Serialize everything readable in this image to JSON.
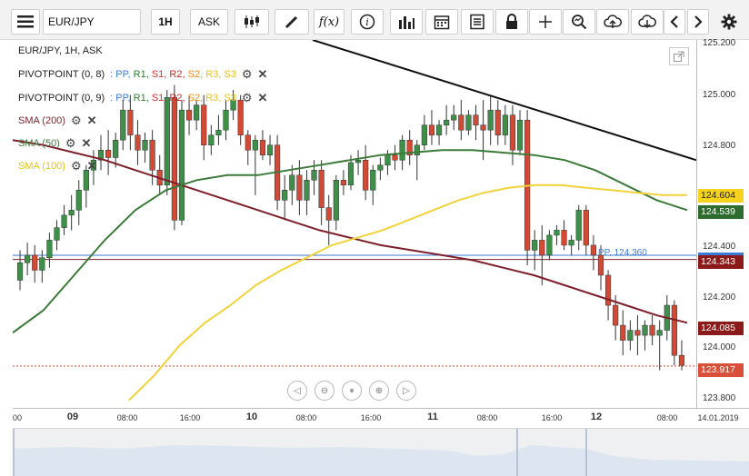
{
  "toolbar": {
    "menu_icon": "hamburger-menu-icon",
    "symbol": "EUR/JPY",
    "timeframe": "1H",
    "price_type": "ASK",
    "fx_label": "f(x)",
    "icons": [
      "candlestick-icon",
      "draw-pencil-icon",
      "indicator-fx-icon",
      "info-icon",
      "volume-bars-icon",
      "calendar-icon",
      "news-icon",
      "lock-icon",
      "crosshair-icon",
      "zoom-icon",
      "cloud-upload-icon",
      "cloud-download-icon",
      "arrow-left-icon",
      "arrow-right-icon",
      "settings-gear-icon"
    ]
  },
  "legend": {
    "title": "EUR/JPY, 1H, ASK",
    "pivot1": "PIVOTPOINT (0, 8)",
    "pivot2": "PIVOTPOINT (0, 9)",
    "pivot_parts": [
      ": PP,",
      "R1,",
      "S1,",
      "R2,",
      "S2,",
      "R3,",
      "S3"
    ],
    "sma200": "SMA (200)",
    "sma50": "SMA (50)",
    "sma100": "SMA (100)",
    "pivot_label": "PP, 124.360"
  },
  "yaxis": {
    "ticks": [
      "125.200",
      "125.000",
      "124.800",
      "124.400",
      "124.200",
      "124.000",
      "123.800"
    ],
    "tags": [
      {
        "text": "124.604",
        "bg": "#f5d21c",
        "fg": "#222222"
      },
      {
        "text": "124.539",
        "bg": "#2e6b2e",
        "fg": "#ffffff"
      },
      {
        "text": "124.343",
        "bg": "#8b1a1a",
        "fg": "#ffffff"
      },
      {
        "text": "124.085",
        "bg": "#8b1a1a",
        "fg": "#ffffff"
      },
      {
        "text": "123.917",
        "bg": "#d9503a",
        "fg": "#ffffff"
      }
    ]
  },
  "xaxis": {
    "ticks": [
      "00",
      "09",
      "08:00",
      "16:00",
      "10",
      "08:00",
      "16:00",
      "11",
      "08:00",
      "16:00",
      "12",
      "08:00",
      "14.01.2019"
    ]
  },
  "colors": {
    "up": "#3f8f4a",
    "down": "#d24a35",
    "sma200": "#7d1f2a",
    "sma50": "#3c7a3a",
    "sma100": "#f0d33a",
    "trendline": "#111111",
    "pp_blue": "#3a7bd5",
    "r_green": "#2e7d32",
    "s_red": "#d32f2f",
    "r2_red": "#c62828",
    "s2_orange": "#f08c1a",
    "r3_yellow": "#e6c21a"
  },
  "chart_data": {
    "type": "candlestick",
    "title": "EUR/JPY, 1H, ASK",
    "ylim": [
      123.75,
      125.22
    ],
    "x_labels": [
      "09",
      "08:00",
      "16:00",
      "10",
      "08:00",
      "16:00",
      "11",
      "08:00",
      "16:00",
      "12",
      "08:00"
    ],
    "candles": [
      {
        "o": 124.26,
        "h": 124.38,
        "c": 124.33,
        "l": 124.22
      },
      {
        "o": 124.33,
        "h": 124.41,
        "c": 124.36,
        "l": 124.28
      },
      {
        "o": 124.36,
        "h": 124.4,
        "c": 124.3,
        "l": 124.25
      },
      {
        "o": 124.3,
        "h": 124.38,
        "c": 124.35,
        "l": 124.25
      },
      {
        "o": 124.35,
        "h": 124.45,
        "c": 124.42,
        "l": 124.31
      },
      {
        "o": 124.42,
        "h": 124.5,
        "c": 124.47,
        "l": 124.38
      },
      {
        "o": 124.47,
        "h": 124.56,
        "c": 124.52,
        "l": 124.44
      },
      {
        "o": 124.52,
        "h": 124.6,
        "c": 124.54,
        "l": 124.46
      },
      {
        "o": 124.54,
        "h": 124.66,
        "c": 124.62,
        "l": 124.48
      },
      {
        "o": 124.62,
        "h": 124.72,
        "c": 124.7,
        "l": 124.55
      },
      {
        "o": 124.7,
        "h": 124.78,
        "c": 124.74,
        "l": 124.64
      },
      {
        "o": 124.74,
        "h": 124.84,
        "c": 124.78,
        "l": 124.7
      },
      {
        "o": 124.78,
        "h": 124.86,
        "c": 124.75,
        "l": 124.68
      },
      {
        "o": 124.75,
        "h": 124.85,
        "c": 124.82,
        "l": 124.71
      },
      {
        "o": 124.82,
        "h": 124.98,
        "c": 124.94,
        "l": 124.78
      },
      {
        "o": 124.94,
        "h": 125.0,
        "c": 124.84,
        "l": 124.78
      },
      {
        "o": 124.84,
        "h": 124.9,
        "c": 124.78,
        "l": 124.72
      },
      {
        "o": 124.78,
        "h": 124.85,
        "c": 124.82,
        "l": 124.73
      },
      {
        "o": 124.82,
        "h": 124.86,
        "c": 124.7,
        "l": 124.64
      },
      {
        "o": 124.7,
        "h": 124.76,
        "c": 124.64,
        "l": 124.6
      },
      {
        "o": 124.64,
        "h": 125.02,
        "c": 124.99,
        "l": 124.6
      },
      {
        "o": 124.99,
        "h": 125.04,
        "c": 124.5,
        "l": 124.46
      },
      {
        "o": 124.5,
        "h": 124.98,
        "c": 124.94,
        "l": 124.48
      },
      {
        "o": 124.94,
        "h": 125.0,
        "c": 124.9,
        "l": 124.84
      },
      {
        "o": 124.9,
        "h": 124.98,
        "c": 124.96,
        "l": 124.86
      },
      {
        "o": 124.96,
        "h": 125.0,
        "c": 124.8,
        "l": 124.74
      },
      {
        "o": 124.8,
        "h": 124.88,
        "c": 124.84,
        "l": 124.76
      },
      {
        "o": 124.84,
        "h": 124.92,
        "c": 124.86,
        "l": 124.8
      },
      {
        "o": 124.86,
        "h": 124.98,
        "c": 124.94,
        "l": 124.82
      },
      {
        "o": 124.94,
        "h": 125.02,
        "c": 124.98,
        "l": 124.9
      },
      {
        "o": 124.98,
        "h": 125.0,
        "c": 124.84,
        "l": 124.8
      },
      {
        "o": 124.84,
        "h": 124.86,
        "c": 124.78,
        "l": 124.72
      },
      {
        "o": 124.78,
        "h": 124.84,
        "c": 124.82,
        "l": 124.6
      },
      {
        "o": 124.82,
        "h": 124.86,
        "c": 124.76,
        "l": 124.74
      },
      {
        "o": 124.76,
        "h": 124.84,
        "c": 124.8,
        "l": 124.72
      },
      {
        "o": 124.8,
        "h": 124.84,
        "c": 124.58,
        "l": 124.54
      },
      {
        "o": 124.58,
        "h": 124.68,
        "c": 124.62,
        "l": 124.5
      },
      {
        "o": 124.62,
        "h": 124.72,
        "c": 124.68,
        "l": 124.56
      },
      {
        "o": 124.68,
        "h": 124.74,
        "c": 124.58,
        "l": 124.52
      },
      {
        "o": 124.58,
        "h": 124.7,
        "c": 124.66,
        "l": 124.52
      },
      {
        "o": 124.66,
        "h": 124.74,
        "c": 124.7,
        "l": 124.6
      },
      {
        "o": 124.7,
        "h": 124.74,
        "c": 124.55,
        "l": 124.48
      },
      {
        "o": 124.55,
        "h": 124.6,
        "c": 124.5,
        "l": 124.4
      },
      {
        "o": 124.5,
        "h": 124.68,
        "c": 124.66,
        "l": 124.46
      },
      {
        "o": 124.66,
        "h": 124.7,
        "c": 124.64,
        "l": 124.6
      },
      {
        "o": 124.64,
        "h": 124.76,
        "c": 124.73,
        "l": 124.62
      },
      {
        "o": 124.73,
        "h": 124.78,
        "c": 124.74,
        "l": 124.68
      },
      {
        "o": 124.74,
        "h": 124.8,
        "c": 124.62,
        "l": 124.58
      },
      {
        "o": 124.62,
        "h": 124.72,
        "c": 124.7,
        "l": 124.56
      },
      {
        "o": 124.7,
        "h": 124.75,
        "c": 124.72,
        "l": 124.66
      },
      {
        "o": 124.72,
        "h": 124.78,
        "c": 124.76,
        "l": 124.68
      },
      {
        "o": 124.76,
        "h": 124.8,
        "c": 124.74,
        "l": 124.7
      },
      {
        "o": 124.74,
        "h": 124.84,
        "c": 124.82,
        "l": 124.7
      },
      {
        "o": 124.82,
        "h": 124.86,
        "c": 124.76,
        "l": 124.72
      },
      {
        "o": 124.76,
        "h": 124.82,
        "c": 124.8,
        "l": 124.66
      },
      {
        "o": 124.8,
        "h": 124.92,
        "c": 124.88,
        "l": 124.78
      },
      {
        "o": 124.88,
        "h": 124.94,
        "c": 124.84,
        "l": 124.8
      },
      {
        "o": 124.84,
        "h": 124.9,
        "c": 124.88,
        "l": 124.8
      },
      {
        "o": 124.88,
        "h": 124.96,
        "c": 124.9,
        "l": 124.84
      },
      {
        "o": 124.9,
        "h": 124.96,
        "c": 124.92,
        "l": 124.86
      },
      {
        "o": 124.92,
        "h": 124.98,
        "c": 124.86,
        "l": 124.82
      },
      {
        "o": 124.86,
        "h": 124.94,
        "c": 124.92,
        "l": 124.84
      },
      {
        "o": 124.92,
        "h": 124.96,
        "c": 124.88,
        "l": 124.82
      },
      {
        "o": 124.88,
        "h": 124.98,
        "c": 124.86,
        "l": 124.74
      },
      {
        "o": 124.86,
        "h": 125.0,
        "c": 124.94,
        "l": 124.8
      },
      {
        "o": 124.94,
        "h": 124.98,
        "c": 124.84,
        "l": 124.8
      },
      {
        "o": 124.84,
        "h": 124.96,
        "c": 124.92,
        "l": 124.8
      },
      {
        "o": 124.92,
        "h": 124.96,
        "c": 124.78,
        "l": 124.72
      },
      {
        "o": 124.78,
        "h": 124.94,
        "c": 124.9,
        "l": 124.76
      },
      {
        "o": 124.9,
        "h": 124.94,
        "c": 124.38,
        "l": 124.32
      },
      {
        "o": 124.38,
        "h": 124.46,
        "c": 124.42,
        "l": 124.3
      },
      {
        "o": 124.42,
        "h": 124.48,
        "c": 124.36,
        "l": 124.24
      },
      {
        "o": 124.36,
        "h": 124.46,
        "c": 124.44,
        "l": 124.34
      },
      {
        "o": 124.44,
        "h": 124.48,
        "c": 124.46,
        "l": 124.4
      },
      {
        "o": 124.46,
        "h": 124.5,
        "c": 124.4,
        "l": 124.38
      },
      {
        "o": 124.4,
        "h": 124.44,
        "c": 124.42,
        "l": 124.36
      },
      {
        "o": 124.42,
        "h": 124.56,
        "c": 124.54,
        "l": 124.38
      },
      {
        "o": 124.54,
        "h": 124.56,
        "c": 124.4,
        "l": 124.36
      },
      {
        "o": 124.4,
        "h": 124.44,
        "c": 124.36,
        "l": 124.3
      },
      {
        "o": 124.36,
        "h": 124.4,
        "c": 124.28,
        "l": 124.22
      },
      {
        "o": 124.28,
        "h": 124.3,
        "c": 124.16,
        "l": 124.1
      },
      {
        "o": 124.16,
        "h": 124.2,
        "c": 124.08,
        "l": 124.02
      },
      {
        "o": 124.08,
        "h": 124.14,
        "c": 124.02,
        "l": 123.96
      },
      {
        "o": 124.02,
        "h": 124.1,
        "c": 124.06,
        "l": 123.98
      },
      {
        "o": 124.06,
        "h": 124.12,
        "c": 124.04,
        "l": 123.96
      },
      {
        "o": 124.04,
        "h": 124.1,
        "c": 124.08,
        "l": 123.98
      },
      {
        "o": 124.08,
        "h": 124.12,
        "c": 124.04,
        "l": 124.0
      },
      {
        "o": 124.04,
        "h": 124.1,
        "c": 124.06,
        "l": 123.9
      },
      {
        "o": 124.06,
        "h": 124.2,
        "c": 124.16,
        "l": 124.02
      },
      {
        "o": 124.16,
        "h": 124.18,
        "c": 123.96,
        "l": 123.92
      },
      {
        "o": 123.96,
        "h": 124.02,
        "c": 123.92,
        "l": 123.9
      }
    ],
    "series": [
      {
        "name": "SMA (200)",
        "values": [
          124.82,
          124.8,
          124.77,
          124.74,
          124.7,
          124.66,
          124.62,
          124.58,
          124.54,
          124.5,
          124.46,
          124.43,
          124.4,
          124.38,
          124.36,
          124.34,
          124.31,
          124.28,
          124.24,
          124.2,
          124.16,
          124.12,
          124.09
        ]
      },
      {
        "name": "SMA (50)",
        "values": [
          124.05,
          124.14,
          124.28,
          124.42,
          124.54,
          124.62,
          124.66,
          124.68,
          124.68,
          124.7,
          124.72,
          124.74,
          124.76,
          124.77,
          124.78,
          124.78,
          124.77,
          124.76,
          124.74,
          124.7,
          124.64,
          124.58,
          124.54
        ]
      },
      {
        "name": "SMA (100)",
        "values": [
          123.78,
          123.88,
          124.0,
          124.09,
          124.16,
          124.24,
          124.3,
          124.35,
          124.4,
          124.43,
          124.46,
          124.5,
          124.54,
          124.58,
          124.61,
          124.63,
          124.64,
          124.64,
          124.63,
          124.62,
          124.61,
          124.6,
          124.6
        ]
      }
    ],
    "trendline": [
      [
        124.98,
        125.22
      ],
      [
        124.74,
        124.74
      ]
    ],
    "pivot_pp": 124.36,
    "current_price": 123.917
  }
}
